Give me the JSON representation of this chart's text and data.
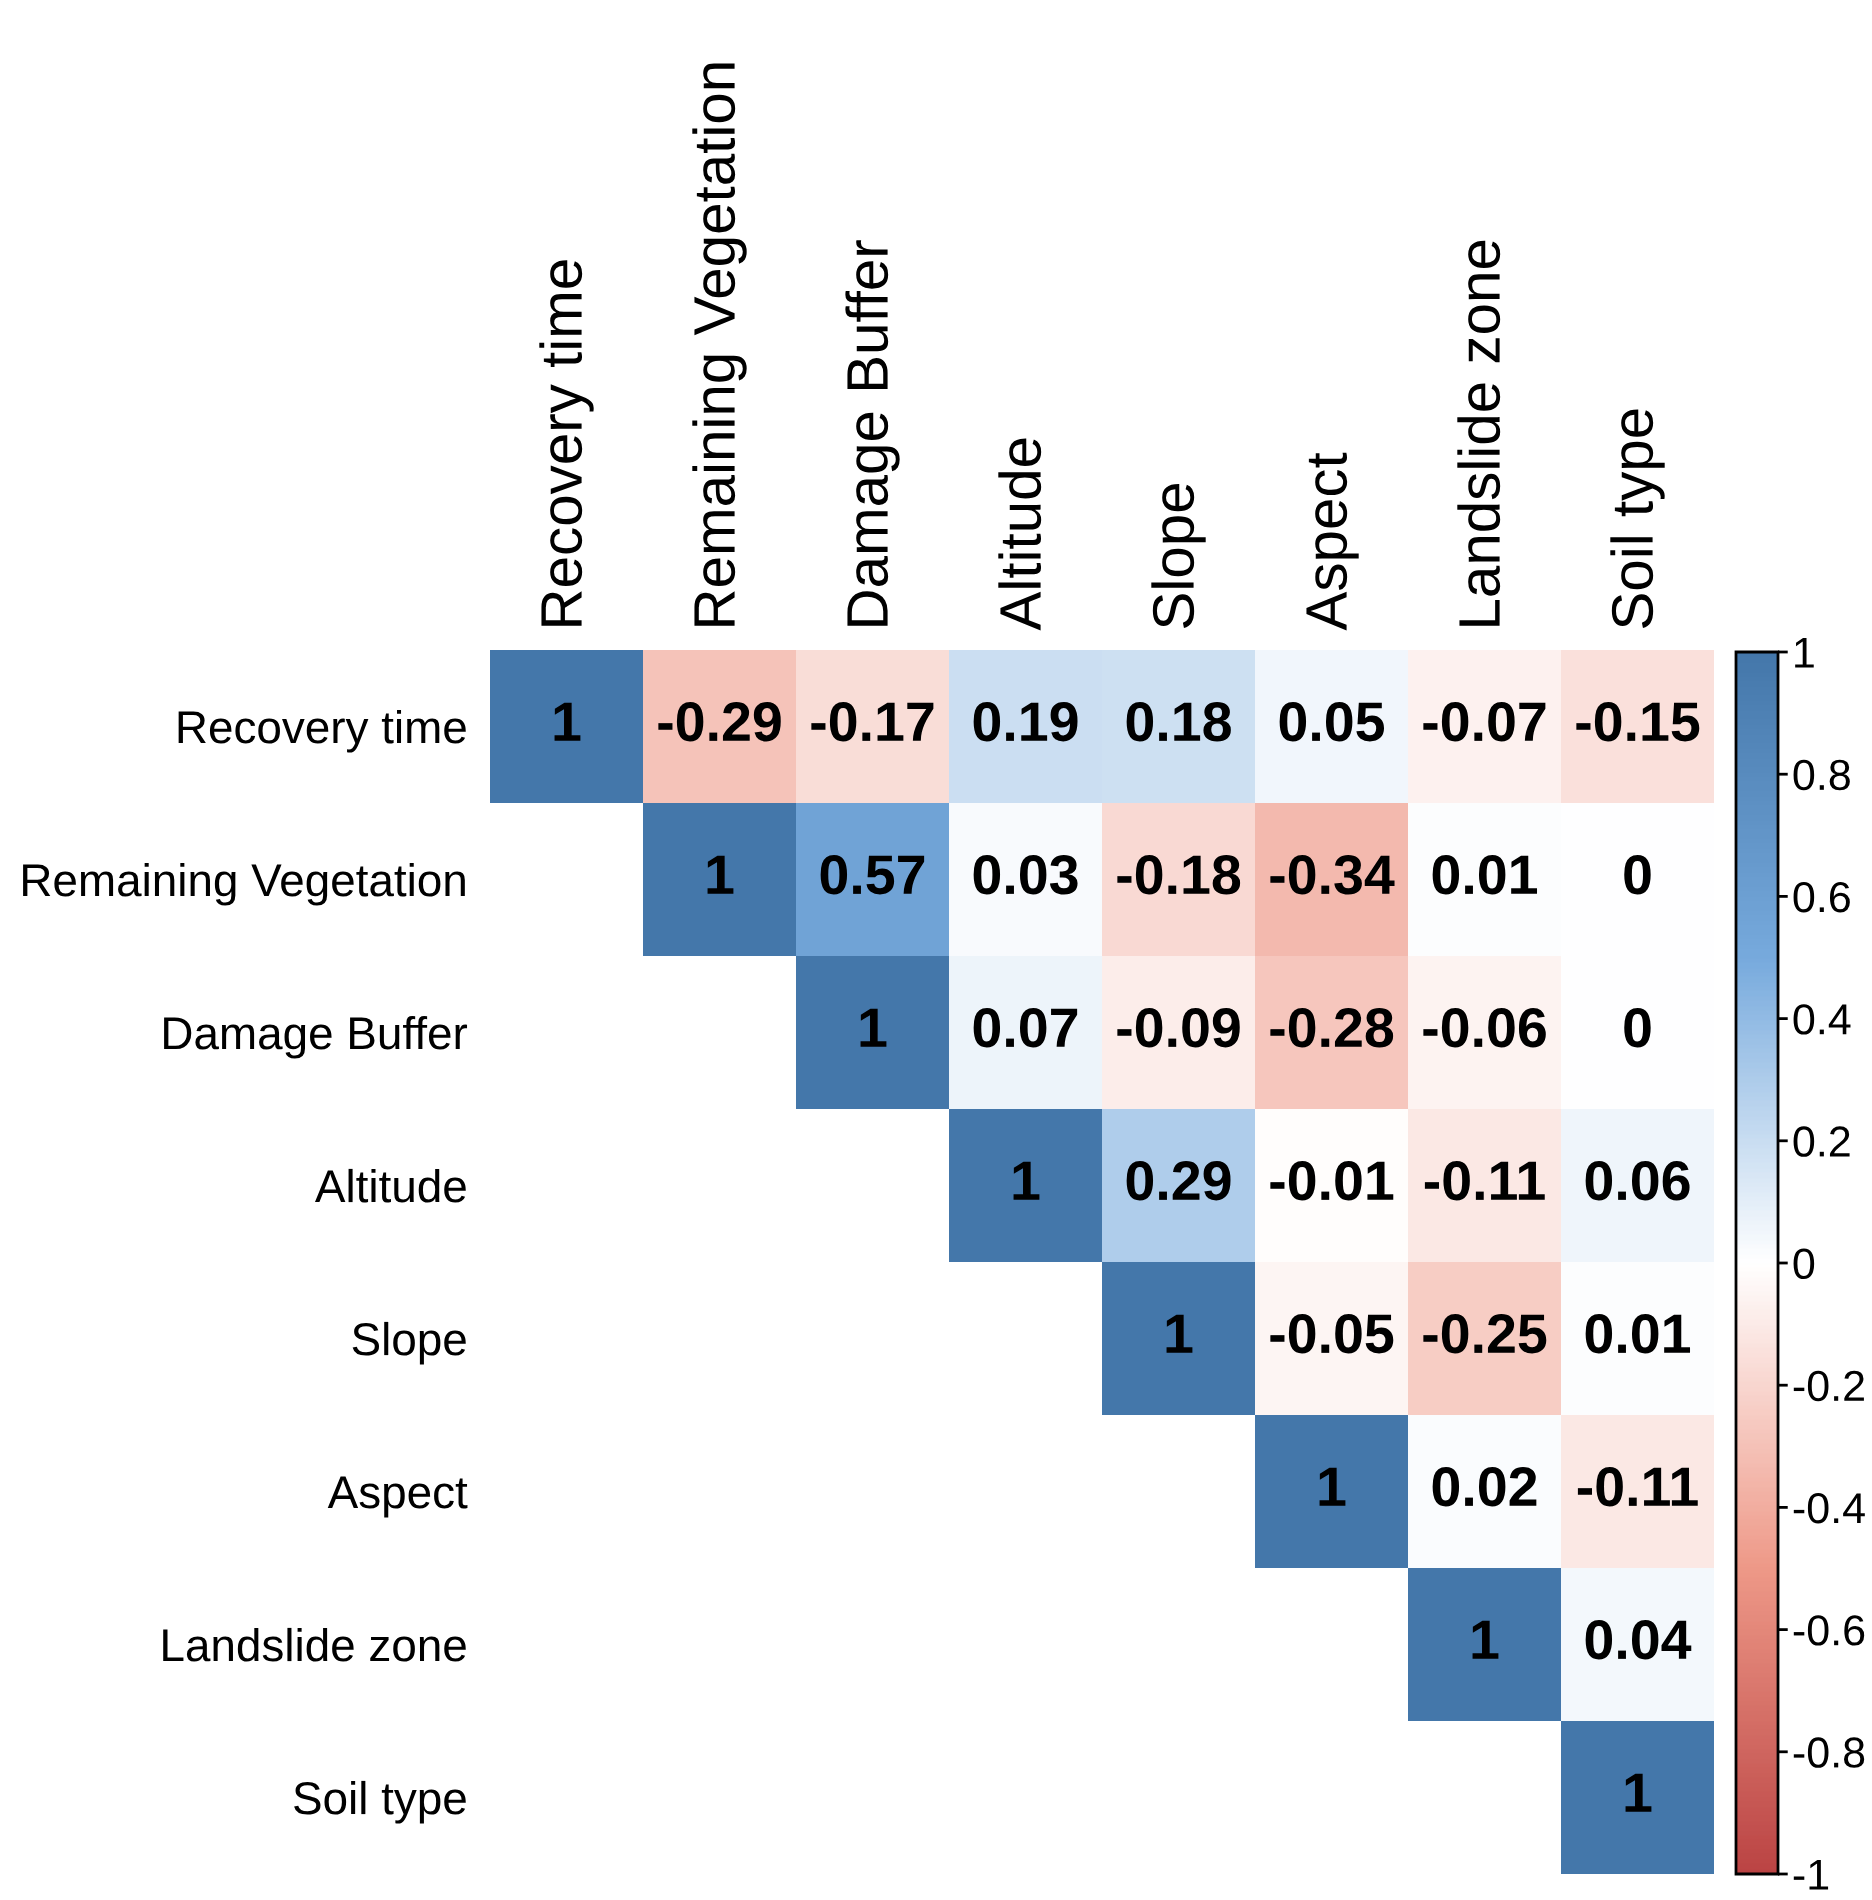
{
  "chart_data": {
    "type": "heatmap",
    "categories": [
      "Recovery time",
      "Remaining Vegetation",
      "Damage Buffer",
      "Altitude",
      "Slope",
      "Aspect",
      "Landslide zone",
      "Soil type"
    ],
    "y_categories": [
      "Recovery time",
      "Remaining Vegetation",
      "Damage Buffer",
      "Altitude",
      "Slope",
      "Aspect",
      "Landslide zone",
      "Soil type"
    ],
    "cells": [
      [
        1,
        -0.29,
        -0.17,
        0.19,
        0.18,
        0.05,
        -0.07,
        -0.15
      ],
      [
        null,
        1,
        0.57,
        0.03,
        -0.18,
        -0.34,
        0.01,
        0
      ],
      [
        null,
        null,
        1,
        0.07,
        -0.09,
        -0.28,
        -0.06,
        0
      ],
      [
        null,
        null,
        null,
        1,
        0.29,
        -0.01,
        -0.11,
        0.06
      ],
      [
        null,
        null,
        null,
        null,
        1,
        -0.05,
        -0.25,
        0.01
      ],
      [
        null,
        null,
        null,
        null,
        null,
        1,
        0.02,
        -0.11
      ],
      [
        null,
        null,
        null,
        null,
        null,
        null,
        1,
        0.04
      ],
      [
        null,
        null,
        null,
        null,
        null,
        null,
        null,
        1
      ]
    ],
    "colors": [
      "#bb4444",
      "#ee9988",
      "#ffffff",
      "#77aadd",
      "#4477aa"
    ],
    "clim": [
      -1,
      1
    ],
    "cticks": [
      -1,
      -0.8,
      -0.6,
      -0.4,
      -0.2,
      0,
      0.2,
      0.4,
      0.6,
      0.8,
      1
    ],
    "data_labels": true
  }
}
